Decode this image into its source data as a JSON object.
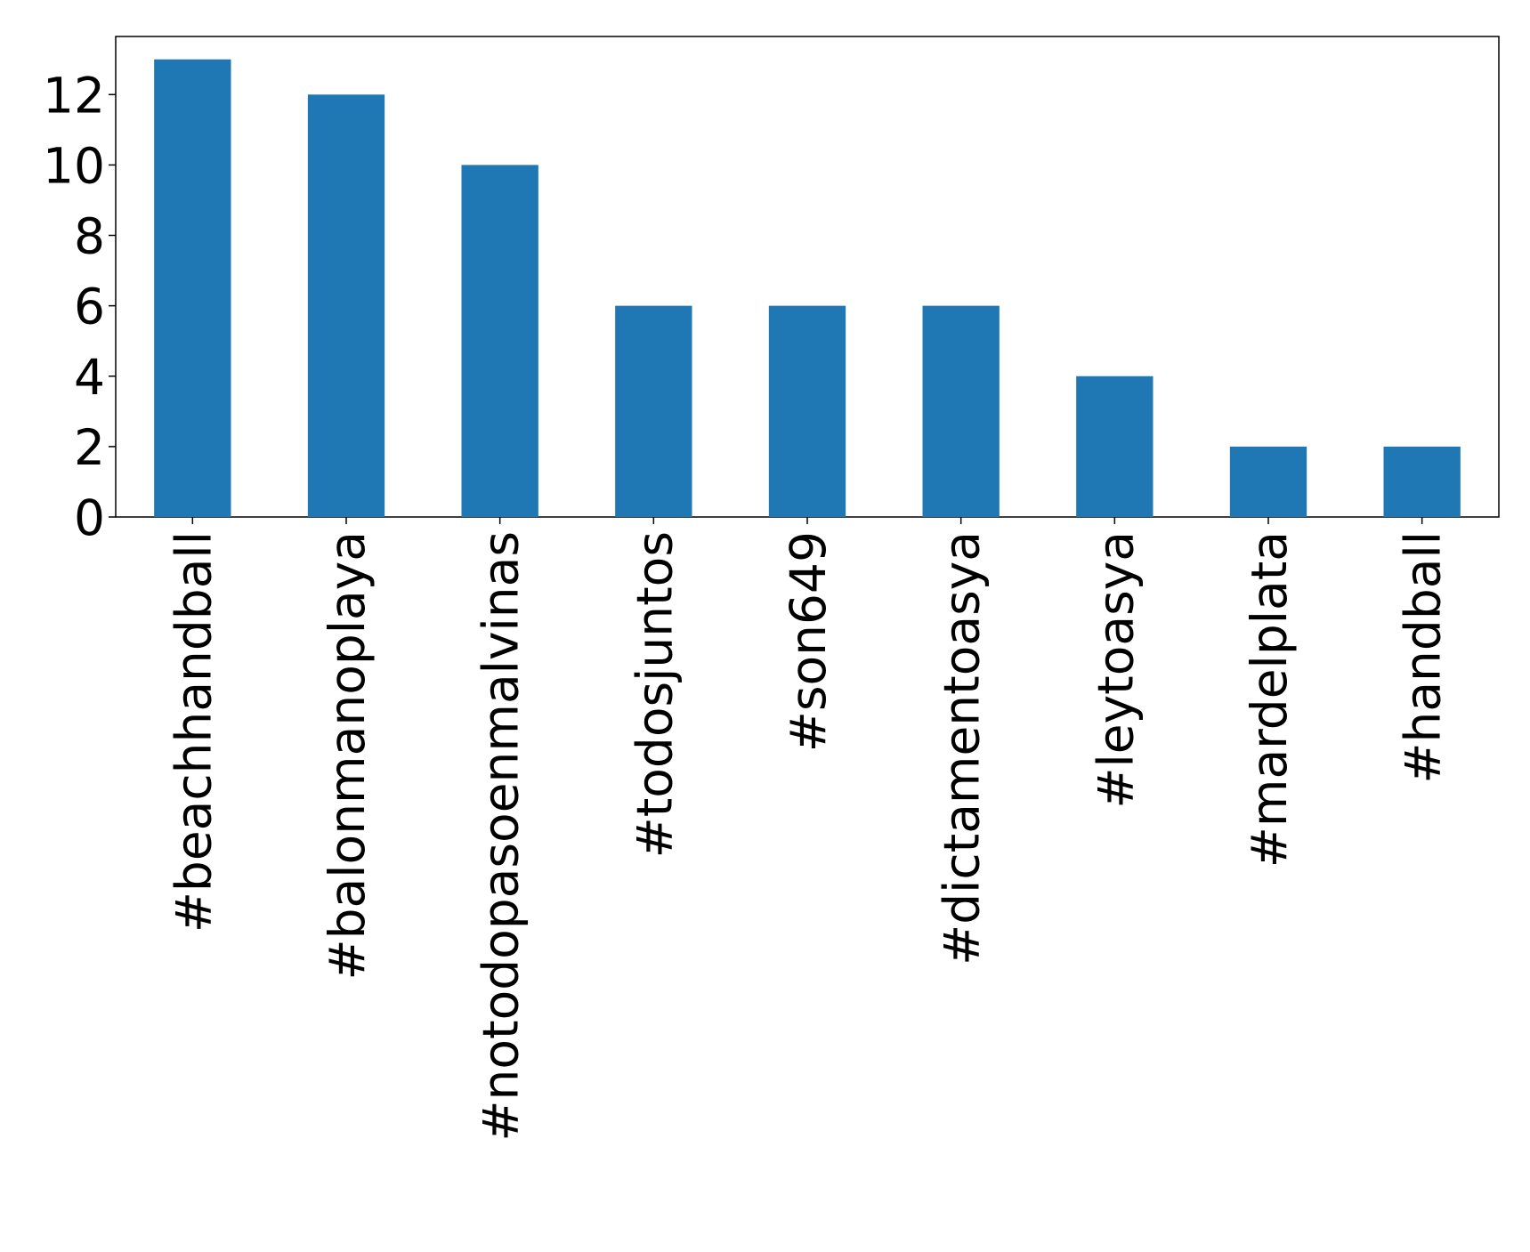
{
  "chart_data": {
    "type": "bar",
    "categories": [
      "#beachhandball",
      "#balonmanoplaya",
      "#notodopasoenmalvinas",
      "#todosjuntos",
      "#son649",
      "#dictamentoasya",
      "#leytoasya",
      "#mardelplata",
      "#handball"
    ],
    "values": [
      13,
      12,
      10,
      6,
      6,
      6,
      4,
      2,
      2
    ],
    "color": "#1f77b4",
    "ylim": [
      0,
      13.65
    ],
    "yticks": [
      0,
      2,
      4,
      6,
      8,
      10,
      12
    ],
    "grid": false
  }
}
